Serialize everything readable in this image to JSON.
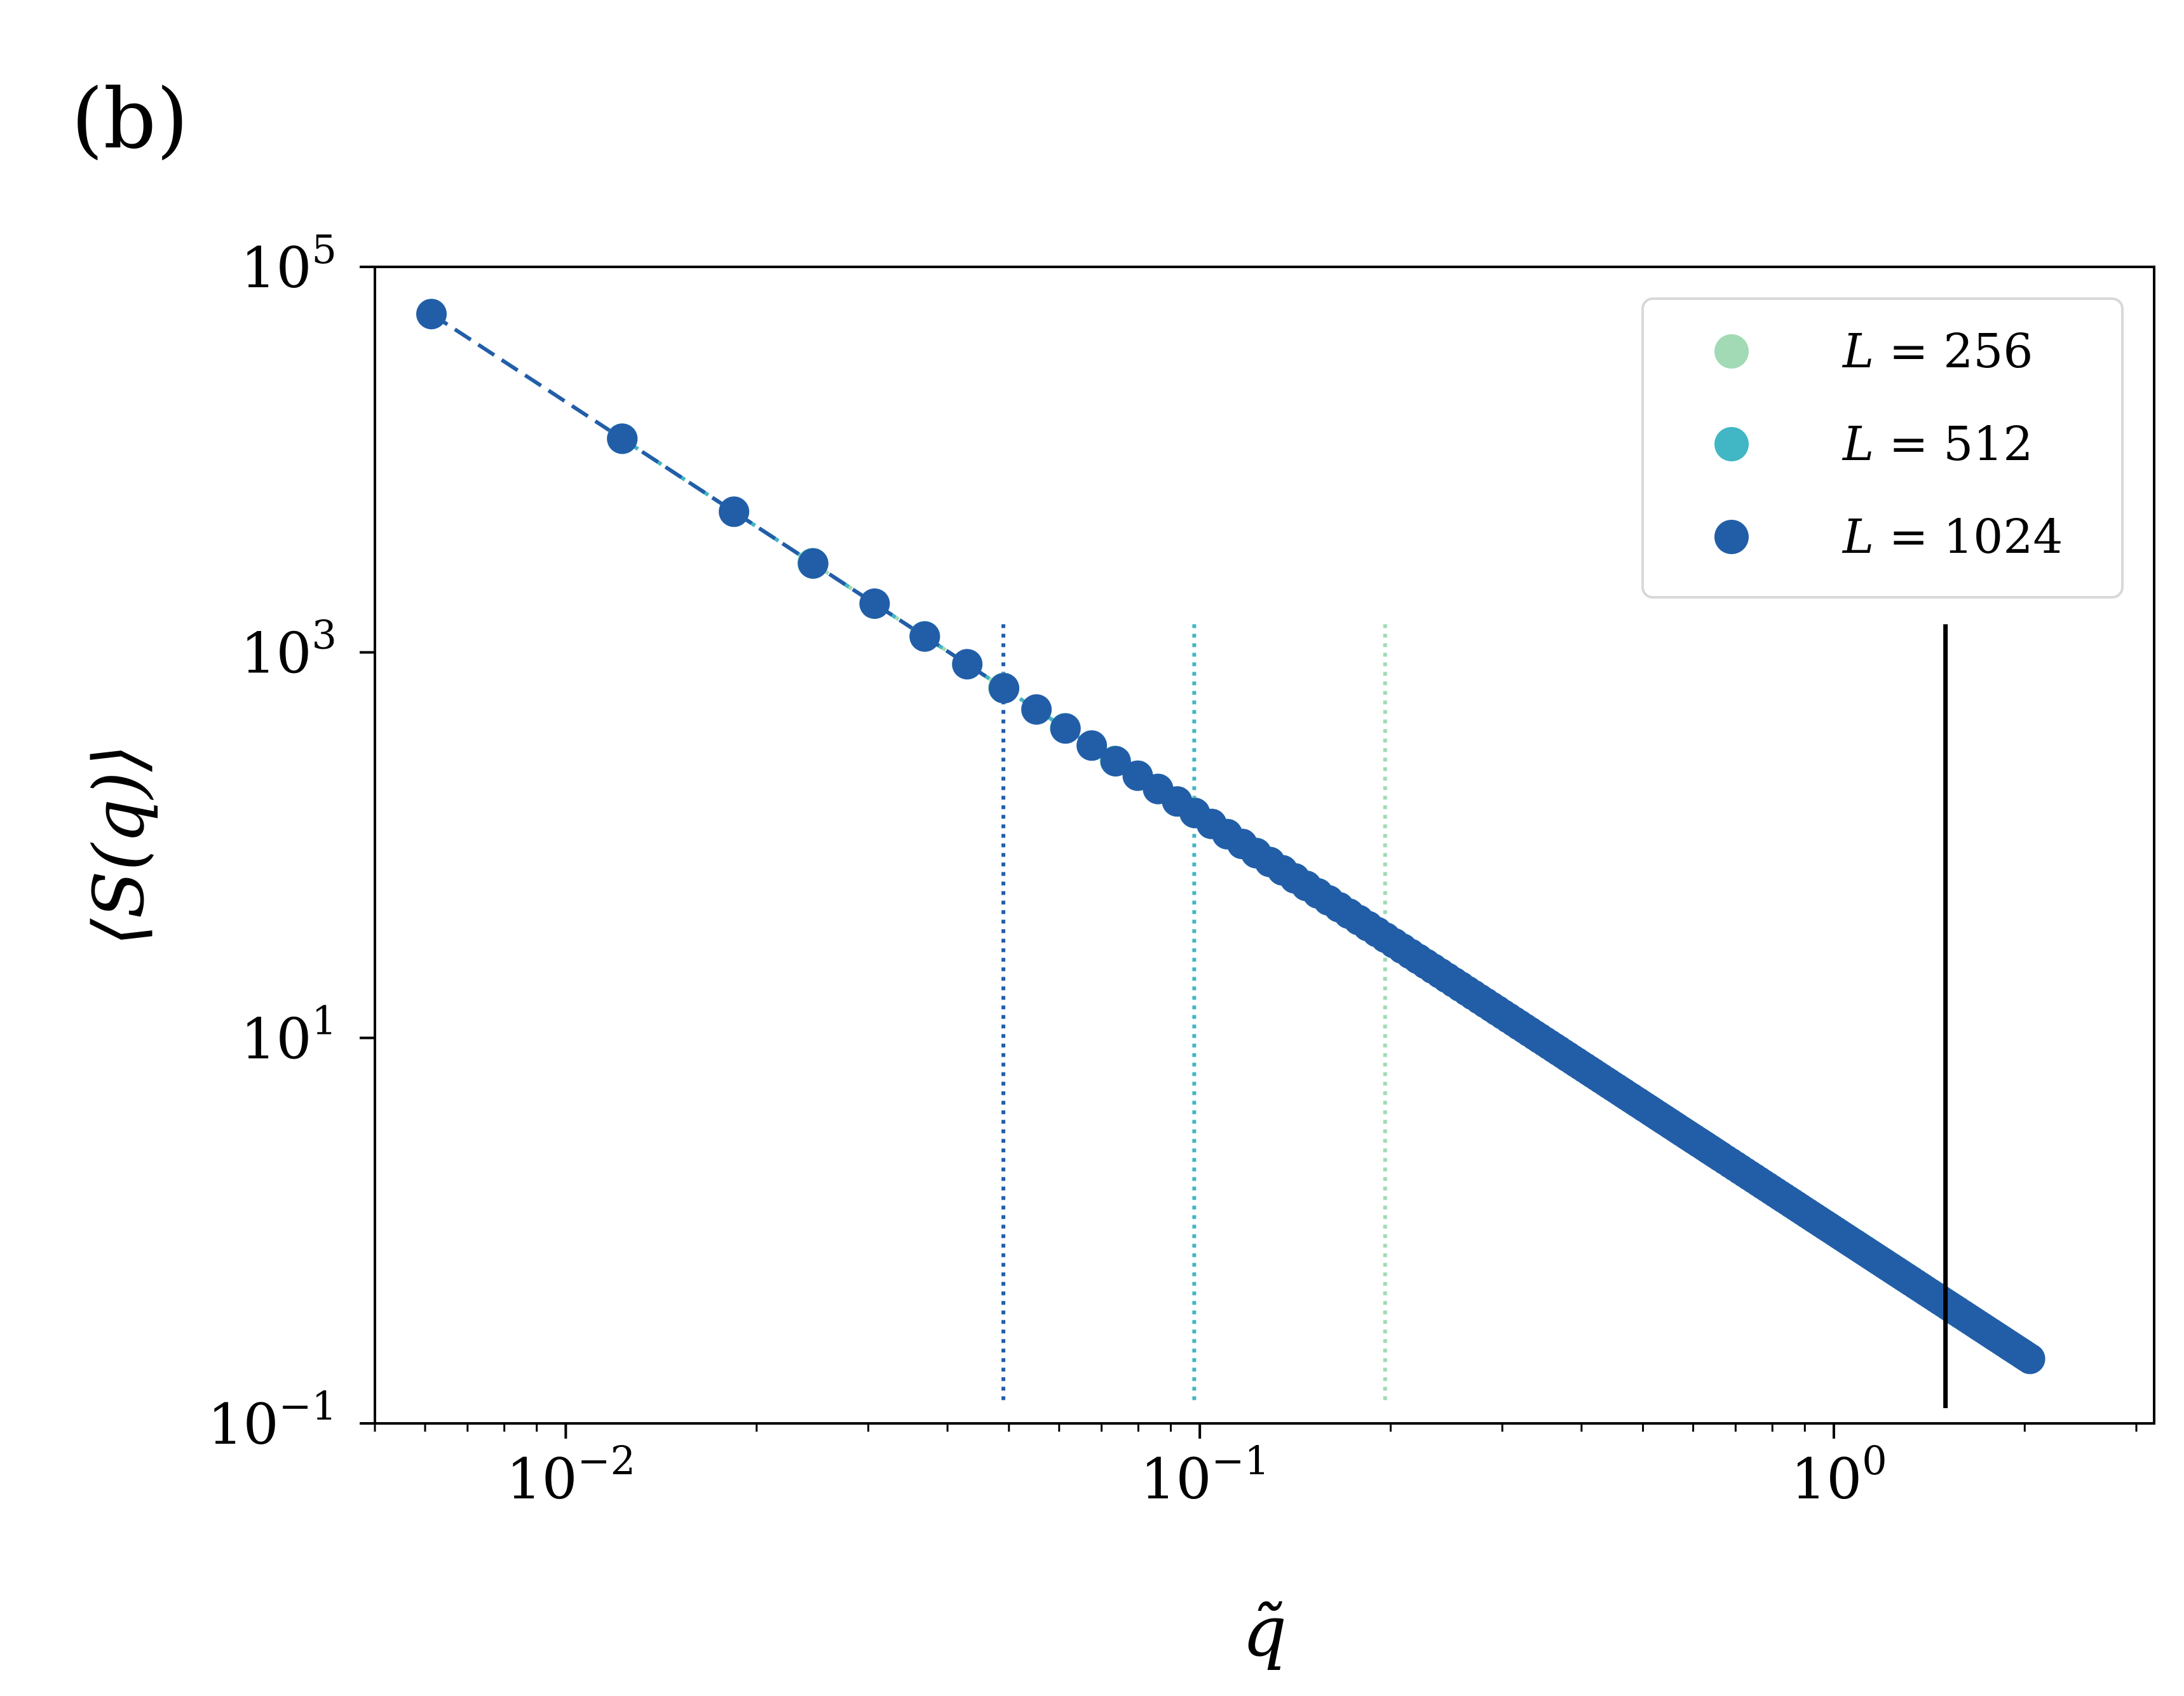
{
  "panel_label": "(b)",
  "chart_data": {
    "type": "scatter",
    "title": "",
    "xlabel": "q̃",
    "ylabel": "⟨S(q)⟩",
    "x_scale": "log",
    "y_scale": "log",
    "xlim": [
      0.005,
      3.2
    ],
    "ylim": [
      0.1,
      100000
    ],
    "x_ticks": [
      {
        "value": 0.01,
        "base": "10",
        "exp": "−2"
      },
      {
        "value": 0.1,
        "base": "10",
        "exp": "−1"
      },
      {
        "value": 1,
        "base": "10",
        "exp": "0"
      }
    ],
    "y_ticks": [
      {
        "value": 0.1,
        "base": "10",
        "exp": "−1"
      },
      {
        "value": 10,
        "base": "10",
        "exp": "1"
      },
      {
        "value": 1000,
        "base": "10",
        "exp": "3"
      },
      {
        "value": 100000,
        "base": "10",
        "exp": "5"
      }
    ],
    "grid": false,
    "legend_position": "top-right",
    "power_law": {
      "amplitude": 1.0,
      "exponent": -2.15
    },
    "series": [
      {
        "name": "L = 256",
        "label_var": "L",
        "label_value": "256",
        "color": "#a1dab4",
        "q_min": 0.0245,
        "q_max": 2.05,
        "dq": 0.0245,
        "cutoff": 0.196
      },
      {
        "name": "L = 512",
        "label_var": "L",
        "label_value": "512",
        "color": "#41b6c4",
        "q_min": 0.01227,
        "q_max": 2.05,
        "dq": 0.01227,
        "cutoff": 0.098
      },
      {
        "name": "L = 1024",
        "label_var": "L",
        "label_value": "1024",
        "color": "#225ea8",
        "q_min": 0.00614,
        "q_max": 2.05,
        "dq": 0.00614,
        "cutoff": 0.049
      }
    ],
    "vertical_line": {
      "x": 1.5,
      "color": "#000000"
    }
  }
}
